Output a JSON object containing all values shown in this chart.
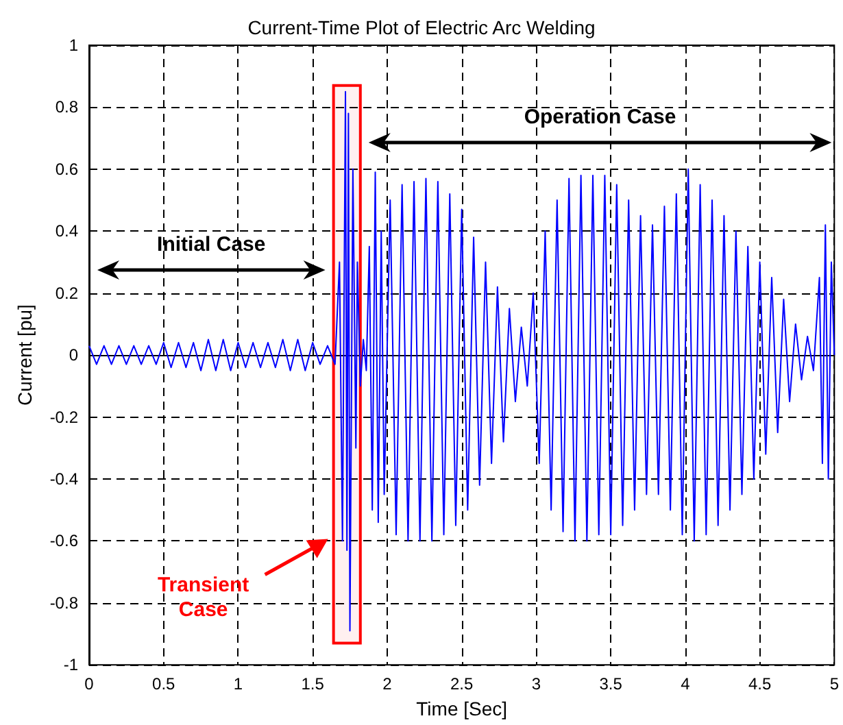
{
  "chart_data": {
    "type": "line",
    "title": "Current-Time Plot of Electric Arc Welding",
    "xlabel": "Time [Sec]",
    "ylabel": "Current [pu]",
    "xlim": [
      0,
      5
    ],
    "xticks": [
      0,
      0.5,
      1,
      1.5,
      2,
      2.5,
      3,
      3.5,
      4,
      4.5,
      5
    ],
    "ylim": [
      -1,
      1
    ],
    "yticks": [
      -1,
      -0.8,
      -0.6,
      -0.4,
      -0.2,
      0,
      0.2,
      0.4,
      0.6,
      0.8,
      1
    ],
    "grid": true,
    "series": [
      {
        "color": "#0000ff",
        "x": [
          0,
          0.05,
          0.1,
          0.15,
          0.2,
          0.25,
          0.3,
          0.35,
          0.4,
          0.45,
          0.5,
          0.55,
          0.6,
          0.65,
          0.7,
          0.75,
          0.8,
          0.85,
          0.9,
          0.95,
          1.0,
          1.05,
          1.1,
          1.15,
          1.2,
          1.25,
          1.3,
          1.35,
          1.4,
          1.45,
          1.5,
          1.55,
          1.6,
          1.65,
          1.68,
          1.7,
          1.72,
          1.73,
          1.74,
          1.75,
          1.77,
          1.79,
          1.8,
          1.82,
          1.84,
          1.86,
          1.88,
          1.9,
          1.92,
          1.94,
          1.96,
          1.98,
          2.02,
          2.06,
          2.1,
          2.14,
          2.18,
          2.22,
          2.26,
          2.3,
          2.34,
          2.38,
          2.42,
          2.46,
          2.5,
          2.54,
          2.58,
          2.62,
          2.66,
          2.7,
          2.74,
          2.78,
          2.82,
          2.86,
          2.9,
          2.94,
          2.98,
          3.02,
          3.06,
          3.1,
          3.14,
          3.18,
          3.22,
          3.26,
          3.3,
          3.34,
          3.38,
          3.42,
          3.46,
          3.5,
          3.54,
          3.58,
          3.62,
          3.66,
          3.7,
          3.74,
          3.78,
          3.82,
          3.86,
          3.9,
          3.94,
          3.98,
          4.02,
          4.06,
          4.1,
          4.14,
          4.18,
          4.22,
          4.26,
          4.3,
          4.34,
          4.38,
          4.42,
          4.46,
          4.5,
          4.54,
          4.58,
          4.62,
          4.66,
          4.7,
          4.74,
          4.78,
          4.82,
          4.86,
          4.9,
          4.92,
          4.94,
          4.96,
          4.98,
          5.0
        ],
        "values": [
          0.03,
          -0.03,
          0.03,
          -0.03,
          0.03,
          -0.03,
          0.03,
          -0.03,
          0.03,
          -0.03,
          0.04,
          -0.04,
          0.04,
          -0.04,
          0.04,
          -0.05,
          0.05,
          -0.05,
          0.05,
          -0.05,
          0.04,
          -0.04,
          0.04,
          -0.04,
          0.04,
          -0.04,
          0.05,
          -0.05,
          0.05,
          -0.05,
          0.04,
          -0.03,
          0.03,
          -0.03,
          0.3,
          -0.6,
          0.85,
          -0.63,
          0.78,
          -0.89,
          0.6,
          -0.3,
          0.3,
          -0.1,
          0.05,
          -0.05,
          0.35,
          -0.5,
          0.59,
          -0.54,
          0.4,
          -0.45,
          0.5,
          -0.58,
          0.55,
          -0.6,
          0.56,
          -0.6,
          0.57,
          -0.6,
          0.56,
          -0.58,
          0.52,
          -0.55,
          0.47,
          -0.5,
          0.38,
          -0.42,
          0.3,
          -0.35,
          0.22,
          -0.28,
          0.15,
          -0.15,
          0.09,
          -0.1,
          0.2,
          -0.35,
          0.4,
          -0.5,
          0.5,
          -0.57,
          0.57,
          -0.6,
          0.58,
          -0.6,
          0.58,
          -0.58,
          0.58,
          -0.58,
          0.55,
          -0.55,
          0.5,
          -0.5,
          0.45,
          -0.45,
          0.42,
          -0.45,
          0.48,
          -0.5,
          0.52,
          -0.58,
          0.6,
          -0.6,
          0.55,
          -0.58,
          0.5,
          -0.55,
          0.45,
          -0.5,
          0.4,
          -0.45,
          0.35,
          -0.4,
          0.3,
          -0.32,
          0.25,
          -0.25,
          0.18,
          -0.15,
          0.1,
          -0.08,
          0.06,
          -0.05,
          0.25,
          -0.35,
          0.42,
          -0.4,
          0.3,
          0
        ]
      }
    ],
    "bands": [
      {
        "axis": "x",
        "from": 1.64,
        "to": 1.82,
        "label": "Transient Case",
        "color": "#ff0000"
      }
    ],
    "annotations": [
      "Initial Case",
      "Operation Case"
    ]
  }
}
